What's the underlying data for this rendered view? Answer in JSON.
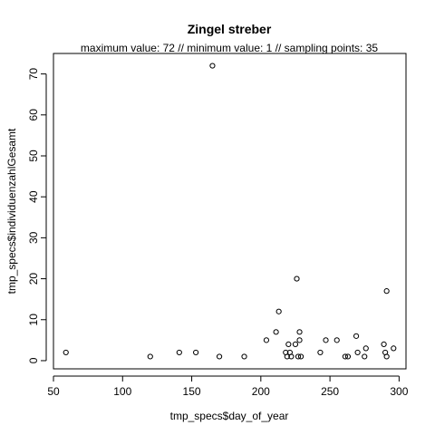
{
  "chart_data": {
    "type": "scatter",
    "title": "Zingel streber",
    "subtitle": "maximum value: 72  //  minimum value: 1  // sampling points: 35",
    "xlabel": "tmp_specs$day_of_year",
    "ylabel": "tmp_specs$individuenzahlGesamt",
    "xlim": [
      50,
      305
    ],
    "ylim": [
      -2,
      75
    ],
    "xticks": [
      50,
      100,
      150,
      200,
      250,
      300
    ],
    "yticks": [
      0,
      10,
      20,
      30,
      40,
      50,
      60,
      70
    ],
    "marker": "open-circle",
    "grid": false,
    "x": [
      59,
      120,
      141,
      153,
      165,
      170,
      188,
      204,
      211,
      213,
      218,
      219,
      220,
      221,
      222,
      225,
      226,
      227,
      228,
      228,
      229,
      243,
      247,
      255,
      261,
      263,
      269,
      270,
      275,
      276,
      289,
      290,
      291,
      291,
      296
    ],
    "y": [
      2,
      1,
      2,
      2,
      72,
      1,
      1,
      5,
      7,
      12,
      2,
      1,
      4,
      2,
      1,
      4,
      20,
      1,
      5,
      7,
      1,
      2,
      5,
      5,
      1,
      1,
      6,
      2,
      1,
      3,
      4,
      2,
      1,
      17,
      3
    ]
  }
}
